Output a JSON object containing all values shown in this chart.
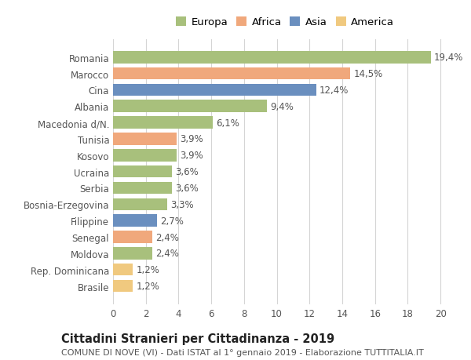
{
  "categories": [
    "Brasile",
    "Rep. Dominicana",
    "Moldova",
    "Senegal",
    "Filippine",
    "Bosnia-Erzegovina",
    "Serbia",
    "Ucraina",
    "Kosovo",
    "Tunisia",
    "Macedonia d/N.",
    "Albania",
    "Cina",
    "Marocco",
    "Romania"
  ],
  "values": [
    1.2,
    1.2,
    2.4,
    2.4,
    2.7,
    3.3,
    3.6,
    3.6,
    3.9,
    3.9,
    6.1,
    9.4,
    12.4,
    14.5,
    19.4
  ],
  "labels": [
    "1,2%",
    "1,2%",
    "2,4%",
    "2,4%",
    "2,7%",
    "3,3%",
    "3,6%",
    "3,6%",
    "3,9%",
    "3,9%",
    "6,1%",
    "9,4%",
    "12,4%",
    "14,5%",
    "19,4%"
  ],
  "colors": [
    "#f0c97f",
    "#f0c97f",
    "#a8c07c",
    "#f0a87c",
    "#6a8fbf",
    "#a8c07c",
    "#a8c07c",
    "#a8c07c",
    "#a8c07c",
    "#f0a87c",
    "#a8c07c",
    "#a8c07c",
    "#6a8fbf",
    "#f0a87c",
    "#a8c07c"
  ],
  "legend_labels": [
    "Europa",
    "Africa",
    "Asia",
    "America"
  ],
  "legend_colors": [
    "#a8c07c",
    "#f0a87c",
    "#6a8fbf",
    "#f0c97f"
  ],
  "xlim": [
    0,
    21
  ],
  "xticks": [
    0,
    2,
    4,
    6,
    8,
    10,
    12,
    14,
    16,
    18,
    20
  ],
  "title": "Cittadini Stranieri per Cittadinanza - 2019",
  "subtitle": "COMUNE DI NOVE (VI) - Dati ISTAT al 1° gennaio 2019 - Elaborazione TUTTITALIA.IT",
  "bg_color": "#ffffff",
  "grid_color": "#d5d5d5",
  "bar_height": 0.75,
  "label_fontsize": 8.5,
  "ytick_fontsize": 8.5,
  "xtick_fontsize": 8.5,
  "title_fontsize": 10.5,
  "subtitle_fontsize": 8,
  "legend_fontsize": 9.5
}
